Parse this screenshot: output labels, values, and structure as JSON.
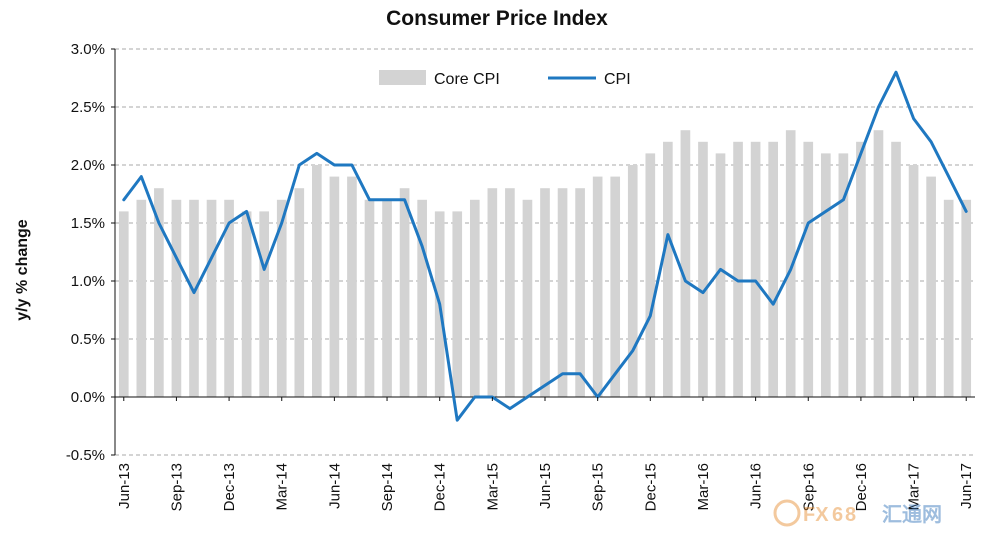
{
  "chart_data": {
    "type": "bar",
    "title": "Consumer  Price Index",
    "xlabel": "",
    "ylabel": "y/y % change",
    "ylim": [
      -0.5,
      3.0
    ],
    "yticks": [
      "-0.5%",
      "0.0%",
      "0.5%",
      "1.0%",
      "1.5%",
      "2.0%",
      "2.5%",
      "3.0%"
    ],
    "grid": true,
    "legend_position": "top-center",
    "x_labels": [
      "Jun-13",
      "Sep-13",
      "Dec-13",
      "Mar-14",
      "Jun-14",
      "Sep-14",
      "Dec-14",
      "Mar-15",
      "Jun-15",
      "Sep-15",
      "Dec-15",
      "Mar-16",
      "Jun-16",
      "Sep-16",
      "Dec-16",
      "Mar-17",
      "Jun-17"
    ],
    "categories": [
      "Jun-13",
      "Jul-13",
      "Aug-13",
      "Sep-13",
      "Oct-13",
      "Nov-13",
      "Dec-13",
      "Jan-14",
      "Feb-14",
      "Mar-14",
      "Apr-14",
      "May-14",
      "Jun-14",
      "Jul-14",
      "Aug-14",
      "Sep-14",
      "Oct-14",
      "Nov-14",
      "Dec-14",
      "Jan-15",
      "Feb-15",
      "Mar-15",
      "Apr-15",
      "May-15",
      "Jun-15",
      "Jul-15",
      "Aug-15",
      "Sep-15",
      "Oct-15",
      "Nov-15",
      "Dec-15",
      "Jan-16",
      "Feb-16",
      "Mar-16",
      "Apr-16",
      "May-16",
      "Jun-16",
      "Jul-16",
      "Aug-16",
      "Sep-16",
      "Oct-16",
      "Nov-16",
      "Dec-16",
      "Jan-17",
      "Feb-17",
      "Mar-17",
      "Apr-17",
      "May-17",
      "Jun-17"
    ],
    "series": [
      {
        "name": "Core CPI",
        "kind": "bar",
        "color": "#d3d3d3",
        "values": [
          1.6,
          1.7,
          1.8,
          1.7,
          1.7,
          1.7,
          1.7,
          1.6,
          1.6,
          1.7,
          1.8,
          2.0,
          1.9,
          1.9,
          1.7,
          1.7,
          1.8,
          1.7,
          1.6,
          1.6,
          1.7,
          1.8,
          1.8,
          1.7,
          1.8,
          1.8,
          1.8,
          1.9,
          1.9,
          2.0,
          2.1,
          2.2,
          2.3,
          2.2,
          2.1,
          2.2,
          2.2,
          2.2,
          2.3,
          2.2,
          2.1,
          2.1,
          2.2,
          2.3,
          2.2,
          2.0,
          1.9,
          1.7,
          1.7
        ]
      },
      {
        "name": "CPI",
        "kind": "line",
        "color": "#1f78c1",
        "values": [
          1.7,
          1.9,
          1.5,
          1.2,
          0.9,
          1.2,
          1.5,
          1.6,
          1.1,
          1.5,
          2.0,
          2.1,
          2.0,
          2.0,
          1.7,
          1.7,
          1.7,
          1.3,
          0.8,
          -0.2,
          0.0,
          0.0,
          -0.1,
          0.0,
          0.1,
          0.2,
          0.2,
          0.0,
          0.2,
          0.4,
          0.7,
          1.4,
          1.0,
          0.9,
          1.1,
          1.0,
          1.0,
          0.8,
          1.1,
          1.5,
          1.6,
          1.7,
          2.1,
          2.5,
          2.8,
          2.4,
          2.2,
          1.9,
          1.6
        ]
      }
    ]
  },
  "watermark": {
    "text": "FX",
    "number": "6",
    "text2": "8",
    "cn": "汇通网"
  }
}
